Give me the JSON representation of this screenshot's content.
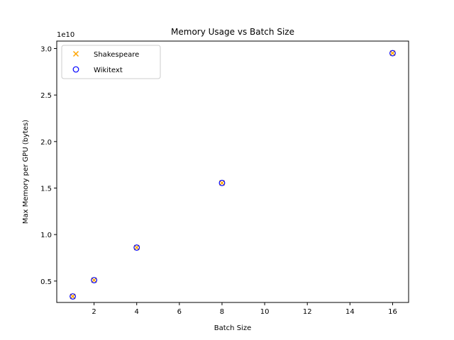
{
  "chart_data": {
    "type": "scatter",
    "title": "Memory Usage vs Batch Size",
    "xlabel": "Batch Size",
    "ylabel": "Max Memory per GPU (bytes)",
    "y_scale_label": "1e10",
    "xlim": [
      0.25,
      16.75
    ],
    "ylim": [
      2700000000.0,
      30800000000.0
    ],
    "x_ticks": [
      2,
      4,
      6,
      8,
      10,
      12,
      14,
      16
    ],
    "y_ticks": [
      5000000000.0,
      10000000000.0,
      15000000000.0,
      20000000000.0,
      25000000000.0,
      30000000000.0
    ],
    "y_tick_labels": [
      "0.5",
      "1.0",
      "1.5",
      "2.0",
      "2.5",
      "3.0"
    ],
    "legend_position": "upper-left",
    "grid": false,
    "series": [
      {
        "name": "Shakespeare",
        "marker": "x",
        "color": "#ffa500",
        "x": [
          1,
          2,
          4,
          8,
          16
        ],
        "y": [
          3350000000.0,
          5100000000.0,
          8600000000.0,
          15550000000.0,
          29500000000.0
        ]
      },
      {
        "name": "Wikitext",
        "marker": "circle-open",
        "color": "#0000ff",
        "x": [
          1,
          2,
          4,
          8,
          16
        ],
        "y": [
          3350000000.0,
          5100000000.0,
          8600000000.0,
          15550000000.0,
          29500000000.0
        ]
      }
    ]
  }
}
